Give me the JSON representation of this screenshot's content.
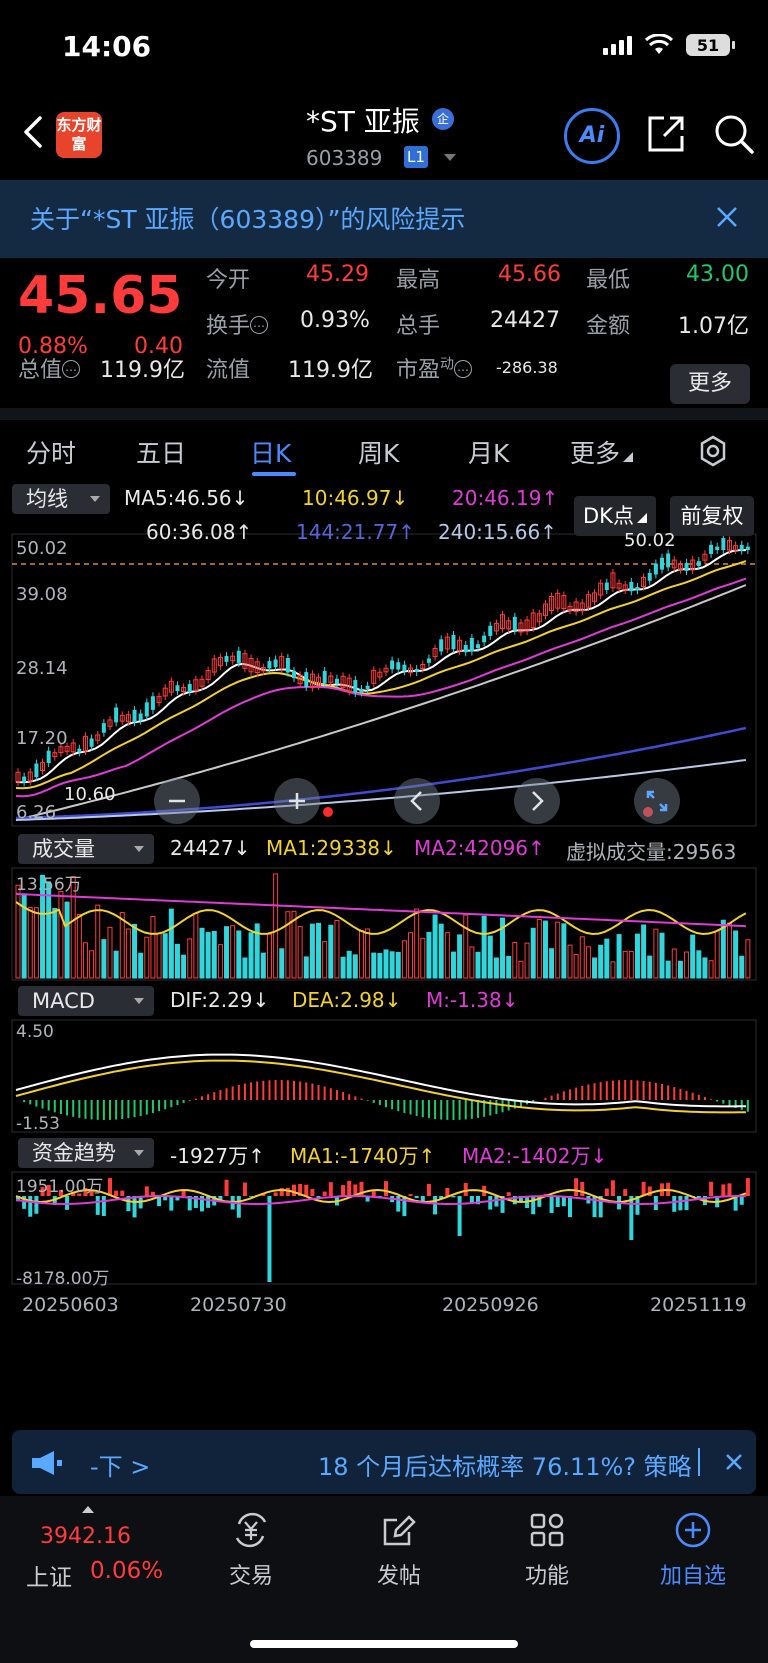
{
  "status_bar": {
    "time": "14:06",
    "battery": "51"
  },
  "header": {
    "logo_text": "东方财富",
    "stock_name": "*ST 亚振",
    "ent_badge": "企",
    "stock_code": "603389",
    "level_badge": "L1",
    "ai_label": "Ai"
  },
  "risk_banner": {
    "text": "关于“*ST 亚振（603389）”的风险提示"
  },
  "quote": {
    "price": "45.65",
    "change_pct": "0.88%",
    "change_abs": "0.40",
    "open_label": "今开",
    "open": "45.29",
    "high_label": "最高",
    "high": "45.66",
    "low_label": "最低",
    "low": "43.00",
    "turnover_label": "换手",
    "turnover": "0.93%",
    "volume_label": "总手",
    "volume": "24427",
    "amount_label": "金额",
    "amount": "1.07亿",
    "mktcap_label": "总值",
    "mktcap": "119.9亿",
    "float_label": "流值",
    "float_cap": "119.9亿",
    "pe_label": "市盈",
    "pe_sup": "动",
    "pe": "-286.38",
    "more_button": "更多"
  },
  "period_tabs": [
    "分时",
    "五日",
    "日K",
    "周K",
    "月K",
    "更多"
  ],
  "chart": {
    "selector": "均线",
    "ma5": "MA5:46.56↓",
    "ma10": "10:46.97↓",
    "ma20": "20:46.19↑",
    "ma60": "60:36.08↑",
    "ma144": "144:21.77↑",
    "ma240": "240:15.66↑",
    "dk_button": "DK点",
    "adjust_button": "前复权",
    "y_labels": [
      "50.02",
      "39.08",
      "28.14",
      "17.20",
      "6.26"
    ],
    "high_marker": "50.02",
    "low_marker": "10.60",
    "volume": {
      "selector": "成交量",
      "value": "24427↓",
      "ma1": "MA1:29338↓",
      "ma2": "MA2:42096↑",
      "virtual": "虚拟成交量:29563",
      "y_top": "13.56万"
    },
    "macd": {
      "selector": "MACD",
      "dif": "DIF:2.29↓",
      "dea": "DEA:2.98↓",
      "m": "M:-1.38↓",
      "y_top": "4.50",
      "y_bottom": "-1.53"
    },
    "fund": {
      "selector": "资金趋势",
      "value": "-1927万↑",
      "ma1": "MA1:-1740万↑",
      "ma2": "MA2:-1402万↓",
      "y_top": "1951.00万",
      "y_bottom": "-8178.00万"
    },
    "x_labels": [
      "20250603",
      "20250730",
      "20250926",
      "20251119"
    ]
  },
  "ticker": {
    "left": "-下 >",
    "text": "18 个月后达标概率 76.11%? 策略"
  },
  "bottom_nav": {
    "index_value": "3942.16",
    "index_name": "上证",
    "index_pct": "0.06%",
    "items": [
      "交易",
      "发帖",
      "功能",
      "加自选"
    ]
  },
  "colors": {
    "up": "#ff3b3b",
    "down": "#1ec96b",
    "accent": "#4a8bff",
    "cyan_bar": "#2fd6dc"
  }
}
